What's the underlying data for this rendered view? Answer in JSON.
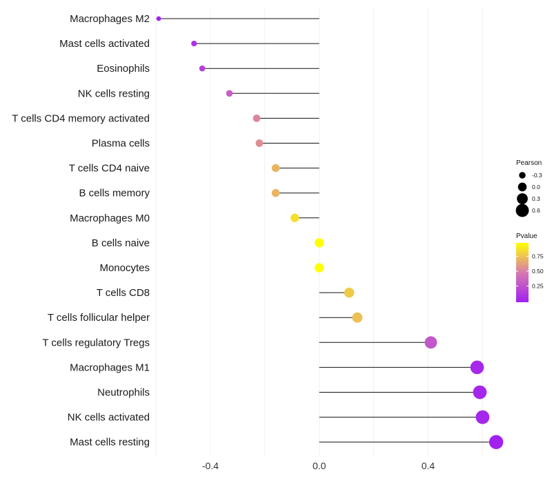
{
  "chart_data": {
    "type": "lollipop",
    "title": "",
    "xlabel": "",
    "ylabel": "",
    "xlim": [
      -0.6,
      0.67
    ],
    "x_ticks": [
      -0.4,
      0.0,
      0.4
    ],
    "x_tick_labels": [
      "-0.4",
      "0.0",
      "0.4"
    ],
    "grid": true,
    "categories": [
      "Macrophages M2",
      "Mast cells activated",
      "Eosinophils",
      "NK cells resting",
      "T cells CD4 memory activated",
      "Plasma cells",
      "T cells CD4 naive",
      "B cells memory",
      "Macrophages M0",
      "B cells naive",
      "Monocytes",
      "T cells CD8",
      "T cells follicular helper",
      "T cells regulatory  Tregs ",
      "Macrophages M1",
      "Neutrophils",
      "NK cells activated",
      "Mast cells resting"
    ],
    "pearson": [
      -0.59,
      -0.46,
      -0.43,
      -0.33,
      -0.23,
      -0.22,
      -0.16,
      -0.16,
      -0.09,
      0.0,
      0.0,
      0.11,
      0.14,
      0.41,
      0.58,
      0.59,
      0.6,
      0.65
    ],
    "pvalue": [
      0.02,
      0.1,
      0.18,
      0.35,
      0.55,
      0.58,
      0.72,
      0.72,
      0.88,
      1.0,
      1.0,
      0.8,
      0.76,
      0.3,
      0.05,
      0.04,
      0.04,
      0.01
    ],
    "legend": {
      "size_title": "Pearson",
      "size_values": [
        -0.3,
        0.0,
        0.3,
        0.6
      ],
      "size_labels": [
        "-0.3",
        "0.0",
        "0.3",
        "0.6"
      ],
      "color_title": "Pvalue",
      "color_values": [
        0.75,
        0.5,
        0.25
      ],
      "color_labels": [
        "0.75",
        "0.50",
        "0.25"
      ],
      "color_low": "#a020f0",
      "color_high": "#ffff00",
      "placement": "right"
    }
  }
}
